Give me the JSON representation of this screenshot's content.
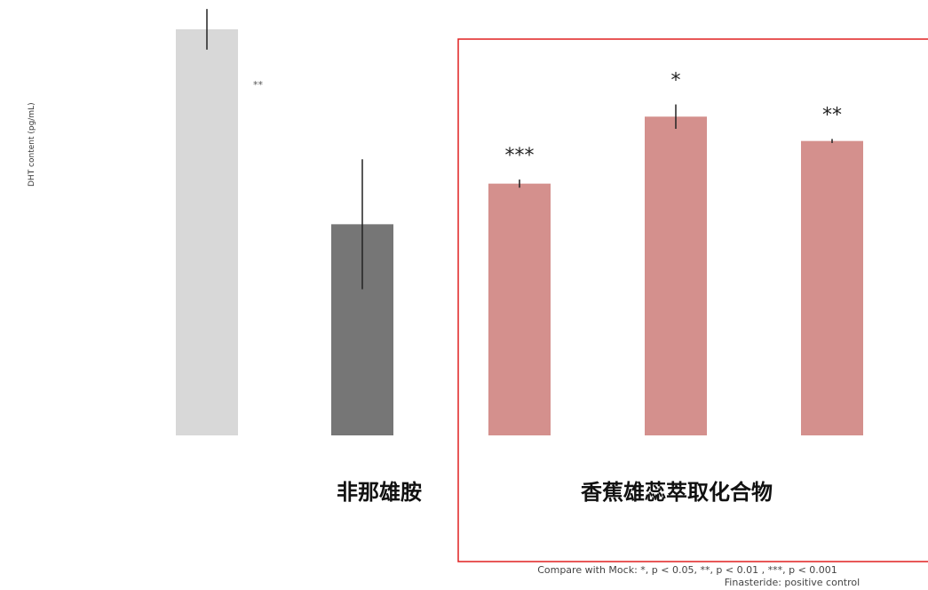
{
  "chart_data": {
    "type": "bar",
    "ylabel": "DHT content (pg/mL)",
    "ylim": [
      0,
      115
    ],
    "grid": false,
    "categories": [
      "",
      "",
      "",
      "",
      ""
    ],
    "values": [
      100,
      52,
      62,
      78.5,
      72.5
    ],
    "errors": [
      5,
      16,
      1,
      3,
      0.5
    ],
    "significance": [
      "**",
      "",
      "***",
      "*",
      "**"
    ],
    "colors": [
      "#d8d8d8",
      "#767676",
      "#d4908d",
      "#d4908d",
      "#d4908d"
    ],
    "group_labels": [
      "非那雄胺",
      "香蕉雄蕊萃取化合物"
    ],
    "highlight_color": "#e02020",
    "footnote_line1": "Compare with Mock: *, p < 0.05, **, p < 0.01 , ***, p < 0.001",
    "footnote_line2": "Finasteride: positive control"
  }
}
